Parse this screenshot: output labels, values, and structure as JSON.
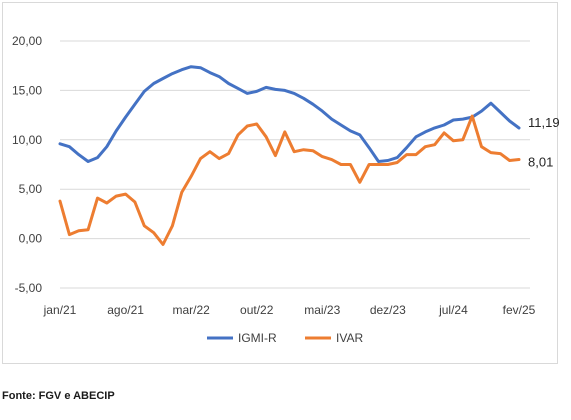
{
  "chart_data": {
    "type": "line",
    "title": "",
    "xlabel": "",
    "ylabel": "",
    "ylim": [
      -5,
      20
    ],
    "yticks": [
      -5,
      0,
      5,
      10,
      15,
      20
    ],
    "ytick_labels": [
      "-5,00",
      "0,00",
      "5,00",
      "10,00",
      "15,00",
      "20,00"
    ],
    "xtick_labels": [
      "jan/21",
      "ago/21",
      "mar/22",
      "out/22",
      "mai/23",
      "dez/23",
      "jul/24",
      "fev/25"
    ],
    "x": [
      "jan/21",
      "fev/21",
      "mar/21",
      "abr/21",
      "mai/21",
      "jun/21",
      "jul/21",
      "ago/21",
      "set/21",
      "out/21",
      "nov/21",
      "dez/21",
      "jan/22",
      "fev/22",
      "mar/22",
      "abr/22",
      "mai/22",
      "jun/22",
      "jul/22",
      "ago/22",
      "set/22",
      "out/22",
      "nov/22",
      "dez/22",
      "jan/23",
      "fev/23",
      "mar/23",
      "abr/23",
      "mai/23",
      "jun/23",
      "jul/23",
      "ago/23",
      "set/23",
      "out/23",
      "nov/23",
      "dez/23",
      "jan/24",
      "fev/24",
      "mar/24",
      "abr/24",
      "mai/24",
      "jun/24",
      "jul/24",
      "ago/24",
      "set/24",
      "out/24",
      "nov/24",
      "dez/24",
      "jan/25",
      "fev/25"
    ],
    "grid": true,
    "legend_position": "bottom",
    "series": [
      {
        "name": "IGMI-R",
        "color": "#4472c4",
        "values": [
          9.6,
          9.3,
          8.5,
          7.8,
          8.2,
          9.3,
          10.9,
          12.3,
          13.6,
          14.9,
          15.7,
          16.2,
          16.7,
          17.1,
          17.4,
          17.3,
          16.8,
          16.4,
          15.7,
          15.2,
          14.7,
          14.9,
          15.3,
          15.1,
          15.0,
          14.7,
          14.2,
          13.6,
          12.9,
          12.1,
          11.5,
          10.9,
          10.5,
          9.2,
          7.8,
          7.9,
          8.2,
          9.2,
          10.3,
          10.8,
          11.2,
          11.5,
          12.0,
          12.1,
          12.3,
          12.9,
          13.7,
          12.8,
          11.9,
          11.19
        ],
        "end_label": "11,19"
      },
      {
        "name": "IVAR",
        "color": "#ed7d31",
        "values": [
          3.8,
          0.4,
          0.8,
          0.9,
          4.1,
          3.6,
          4.3,
          4.5,
          3.7,
          1.3,
          0.6,
          -0.6,
          1.3,
          4.7,
          6.3,
          8.1,
          8.8,
          8.1,
          8.6,
          10.5,
          11.4,
          11.6,
          10.3,
          8.4,
          10.8,
          8.8,
          9.0,
          8.9,
          8.3,
          8.0,
          7.5,
          7.5,
          5.7,
          7.5,
          7.5,
          7.5,
          7.7,
          8.5,
          8.5,
          9.3,
          9.5,
          10.7,
          9.9,
          10.0,
          12.4,
          9.3,
          8.7,
          8.6,
          7.9,
          8.01
        ],
        "end_label": "8,01"
      }
    ]
  },
  "source_text": "Fonte: FGV e ABECIP"
}
